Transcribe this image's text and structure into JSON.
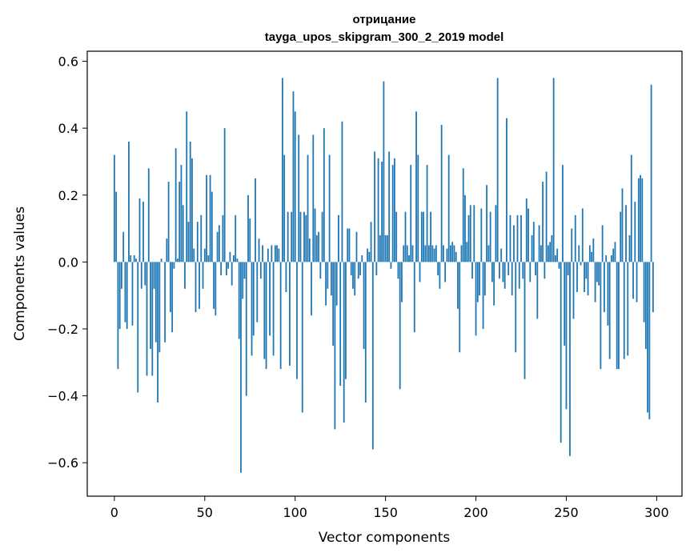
{
  "chart_data": {
    "type": "bar",
    "title_line1": "отрицание",
    "title_line2": "tayga_upos_skipgram_300_2_2019 model",
    "xlabel": "Vector components",
    "ylabel": "Components values",
    "xlim": [
      -15,
      314
    ],
    "ylim": [
      -0.7,
      0.63
    ],
    "x_ticks": [
      0,
      50,
      100,
      150,
      200,
      250,
      300
    ],
    "x_tick_labels": [
      "0",
      "50",
      "100",
      "150",
      "200",
      "250",
      "300"
    ],
    "y_ticks": [
      -0.6,
      -0.4,
      -0.2,
      0.0,
      0.2,
      0.4,
      0.6
    ],
    "y_tick_labels": [
      "−0.6",
      "−0.4",
      "−0.2",
      "0.0",
      "0.2",
      "0.4",
      "0.6"
    ],
    "bar_color": "#1f77b4",
    "values": [
      0.32,
      0.21,
      -0.32,
      -0.2,
      -0.08,
      0.09,
      -0.18,
      -0.2,
      0.36,
      0.02,
      -0.19,
      0.02,
      0.01,
      -0.39,
      0.19,
      -0.08,
      0.18,
      -0.07,
      -0.34,
      0.28,
      -0.26,
      -0.34,
      -0.08,
      -0.24,
      -0.42,
      -0.27,
      0.01,
      0.0,
      -0.24,
      0.07,
      0.24,
      -0.15,
      -0.21,
      -0.02,
      0.34,
      0.01,
      0.24,
      0.29,
      0.17,
      -0.08,
      0.45,
      0.12,
      0.36,
      0.31,
      0.04,
      -0.15,
      0.12,
      -0.14,
      0.14,
      -0.08,
      0.04,
      0.26,
      0.02,
      0.26,
      0.21,
      -0.14,
      -0.16,
      0.09,
      0.11,
      -0.04,
      0.14,
      0.4,
      -0.04,
      -0.02,
      0.03,
      -0.07,
      0.02,
      0.14,
      0.01,
      -0.23,
      -0.63,
      -0.11,
      -0.05,
      -0.4,
      0.2,
      0.13,
      -0.28,
      -0.22,
      0.25,
      -0.18,
      0.07,
      -0.05,
      0.05,
      -0.29,
      -0.32,
      0.04,
      -0.22,
      0.05,
      -0.28,
      0.05,
      0.05,
      0.04,
      -0.32,
      0.55,
      0.32,
      -0.09,
      0.15,
      -0.31,
      0.15,
      0.51,
      0.45,
      -0.35,
      0.38,
      0.15,
      -0.45,
      0.15,
      0.14,
      0.32,
      0.07,
      -0.16,
      0.38,
      0.16,
      0.08,
      0.09,
      -0.05,
      0.15,
      0.4,
      -0.13,
      -0.08,
      0.32,
      -0.1,
      -0.25,
      -0.5,
      -0.13,
      0.14,
      -0.37,
      0.42,
      -0.48,
      -0.35,
      0.1,
      0.1,
      -0.04,
      -0.08,
      -0.1,
      0.09,
      -0.05,
      -0.04,
      0.02,
      -0.26,
      -0.42,
      0.04,
      0.03,
      0.12,
      -0.56,
      0.33,
      -0.04,
      0.31,
      0.08,
      0.3,
      0.54,
      0.08,
      0.08,
      0.33,
      -0.02,
      0.29,
      0.31,
      0.15,
      -0.05,
      -0.38,
      -0.12,
      0.05,
      0.15,
      0.05,
      0.02,
      0.29,
      0.05,
      -0.21,
      0.45,
      0.32,
      -0.06,
      0.15,
      0.15,
      0.05,
      0.29,
      0.05,
      0.15,
      0.05,
      0.04,
      0.05,
      -0.04,
      -0.08,
      0.41,
      0.05,
      -0.06,
      0.04,
      0.32,
      0.05,
      0.06,
      0.05,
      0.03,
      -0.14,
      -0.27,
      0.05,
      0.28,
      0.2,
      0.06,
      0.14,
      0.17,
      -0.05,
      0.17,
      -0.22,
      -0.12,
      -0.1,
      0.16,
      -0.2,
      -0.1,
      0.23,
      0.05,
      0.15,
      -0.06,
      -0.13,
      0.17,
      0.55,
      -0.05,
      0.04,
      -0.06,
      -0.08,
      0.43,
      -0.04,
      0.14,
      -0.1,
      0.11,
      -0.27,
      0.14,
      -0.08,
      0.14,
      -0.05,
      -0.35,
      0.19,
      0.16,
      -0.06,
      0.08,
      0.12,
      -0.04,
      -0.17,
      0.11,
      0.05,
      0.24,
      -0.05,
      0.27,
      0.05,
      0.06,
      0.08,
      0.55,
      0.02,
      0.04,
      -0.02,
      -0.54,
      0.29,
      -0.25,
      -0.44,
      -0.04,
      -0.58,
      0.1,
      -0.17,
      0.14,
      -0.09,
      0.05,
      -0.01,
      0.16,
      -0.09,
      -0.05,
      -0.1,
      0.05,
      0.03,
      0.07,
      -0.12,
      -0.06,
      -0.07,
      -0.32,
      0.11,
      -0.15,
      0.02,
      -0.19,
      -0.29,
      0.02,
      0.04,
      0.06,
      -0.32,
      -0.32,
      0.15,
      0.22,
      -0.29,
      0.17,
      -0.28,
      0.08,
      0.32,
      -0.11,
      0.18,
      -0.12,
      0.25,
      0.26,
      0.25,
      -0.18,
      -0.26,
      -0.45,
      -0.47,
      0.53,
      -0.15
    ]
  }
}
